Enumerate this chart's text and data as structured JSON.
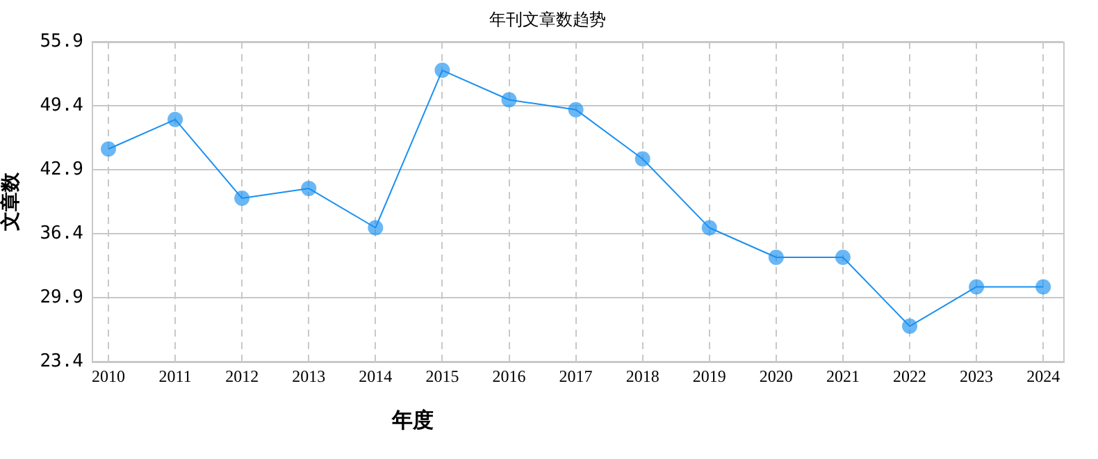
{
  "chart_data": {
    "type": "line",
    "title": "年刊文章数趋势",
    "xlabel": "年度",
    "ylabel": "文章数",
    "x": [
      2010,
      2011,
      2012,
      2013,
      2014,
      2015,
      2016,
      2017,
      2018,
      2019,
      2020,
      2021,
      2022,
      2023,
      2024
    ],
    "series": [
      {
        "color": "#1a90f0",
        "values": [
          45,
          48,
          40,
          41,
          37,
          53,
          50,
          49,
          44,
          37,
          34,
          34,
          27,
          31,
          31
        ]
      }
    ],
    "xlim": [
      2009.75,
      2024.3
    ],
    "xticks": [
      2010,
      2011,
      2012,
      2013,
      2014,
      2015,
      2016,
      2017,
      2018,
      2019,
      2020,
      2021,
      2022,
      2023,
      2024
    ],
    "ylim": [
      23.4,
      55.9
    ],
    "yticks": [
      23.4,
      29.9,
      36.4,
      42.9,
      49.4,
      55.9
    ],
    "grid": true,
    "legend": false,
    "marker": "circle",
    "line_style": "solid"
  }
}
